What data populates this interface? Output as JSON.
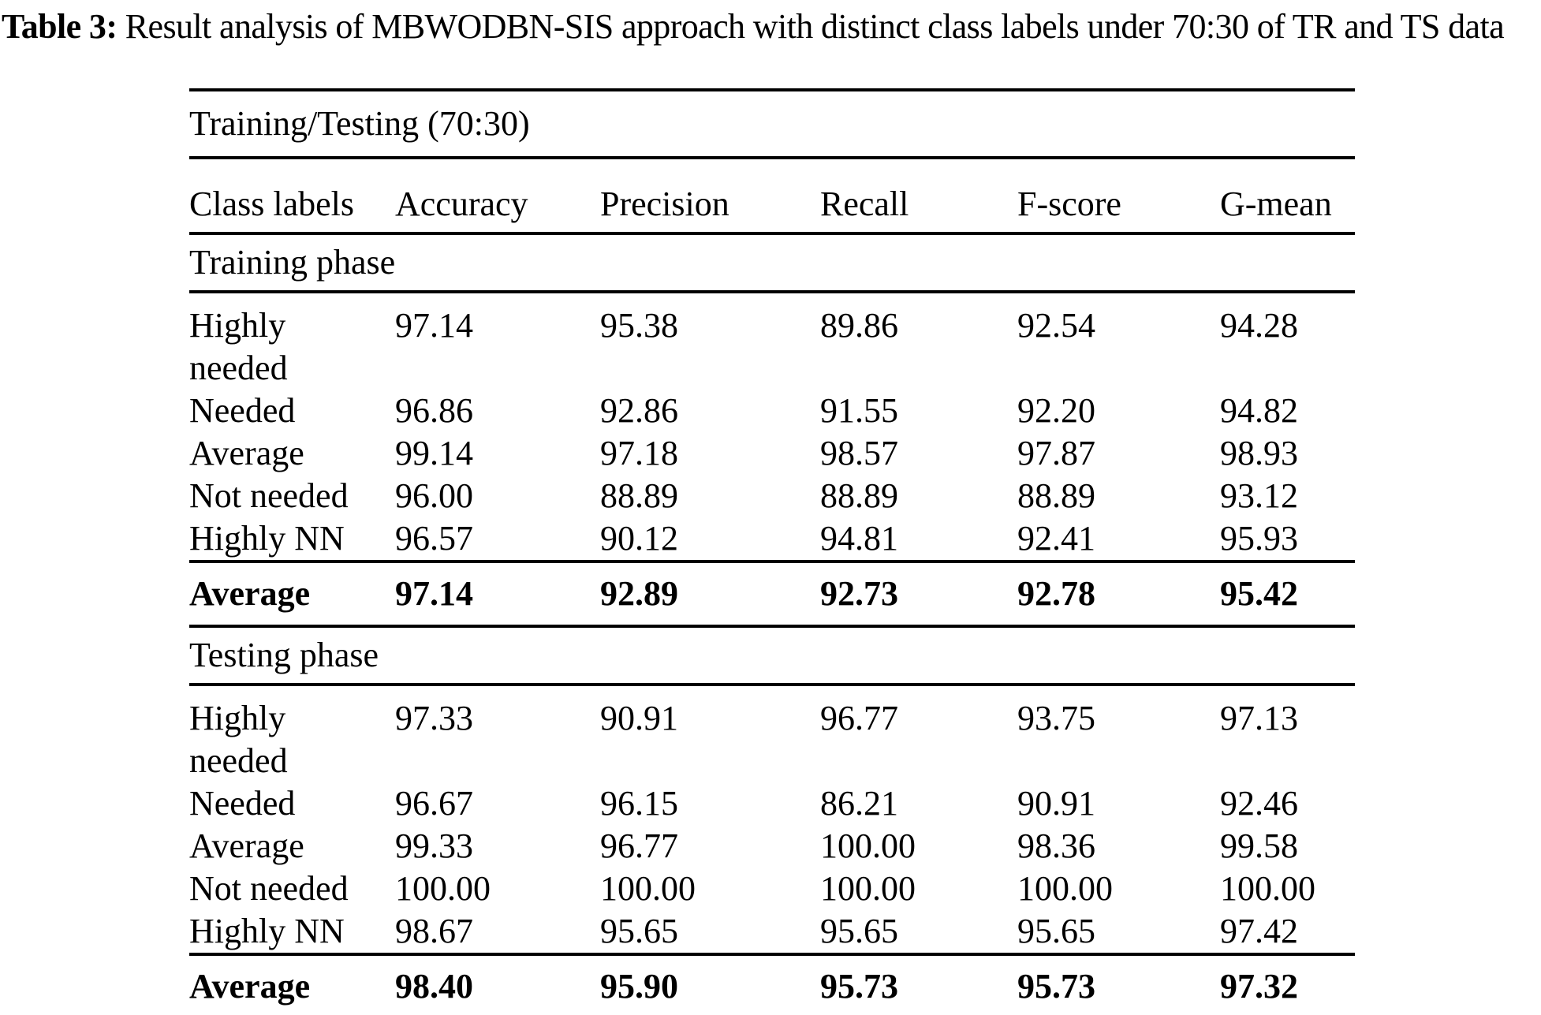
{
  "caption": {
    "label": "Table 3:",
    "text": " Result analysis of MBWODBN-SIS approach with distinct class labels under 70:30 of TR and TS data"
  },
  "table": {
    "span_header": "Training/Testing (70:30)",
    "columns": [
      "Class labels",
      "Accuracy",
      "Precision",
      "Recall",
      "F-score",
      "G-mean"
    ],
    "sections": [
      {
        "name": "Training phase",
        "rows": [
          {
            "label": "Highly needed",
            "values": [
              "97.14",
              "95.38",
              "89.86",
              "92.54",
              "94.28"
            ]
          },
          {
            "label": "Needed",
            "values": [
              "96.86",
              "92.86",
              "91.55",
              "92.20",
              "94.82"
            ]
          },
          {
            "label": "Average",
            "values": [
              "99.14",
              "97.18",
              "98.57",
              "97.87",
              "98.93"
            ]
          },
          {
            "label": "Not needed",
            "values": [
              "96.00",
              "88.89",
              "88.89",
              "88.89",
              "93.12"
            ]
          },
          {
            "label": "Highly NN",
            "values": [
              "96.57",
              "90.12",
              "94.81",
              "92.41",
              "95.93"
            ]
          }
        ],
        "average": {
          "label": "Average",
          "values": [
            "97.14",
            "92.89",
            "92.73",
            "92.78",
            "95.42"
          ]
        }
      },
      {
        "name": "Testing phase",
        "rows": [
          {
            "label": "Highly needed",
            "values": [
              "97.33",
              "90.91",
              "96.77",
              "93.75",
              "97.13"
            ]
          },
          {
            "label": "Needed",
            "values": [
              "96.67",
              "96.15",
              "86.21",
              "90.91",
              "92.46"
            ]
          },
          {
            "label": "Average",
            "values": [
              "99.33",
              "96.77",
              "100.00",
              "98.36",
              "99.58"
            ]
          },
          {
            "label": "Not needed",
            "values": [
              "100.00",
              "100.00",
              "100.00",
              "100.00",
              "100.00"
            ]
          },
          {
            "label": "Highly NN",
            "values": [
              "98.67",
              "95.65",
              "95.65",
              "95.65",
              "97.42"
            ]
          }
        ],
        "average": {
          "label": "Average",
          "values": [
            "98.40",
            "95.90",
            "95.73",
            "95.73",
            "97.32"
          ]
        }
      }
    ]
  },
  "colors": {
    "background": "#ffffff",
    "text": "#000000",
    "rule": "#000000"
  }
}
